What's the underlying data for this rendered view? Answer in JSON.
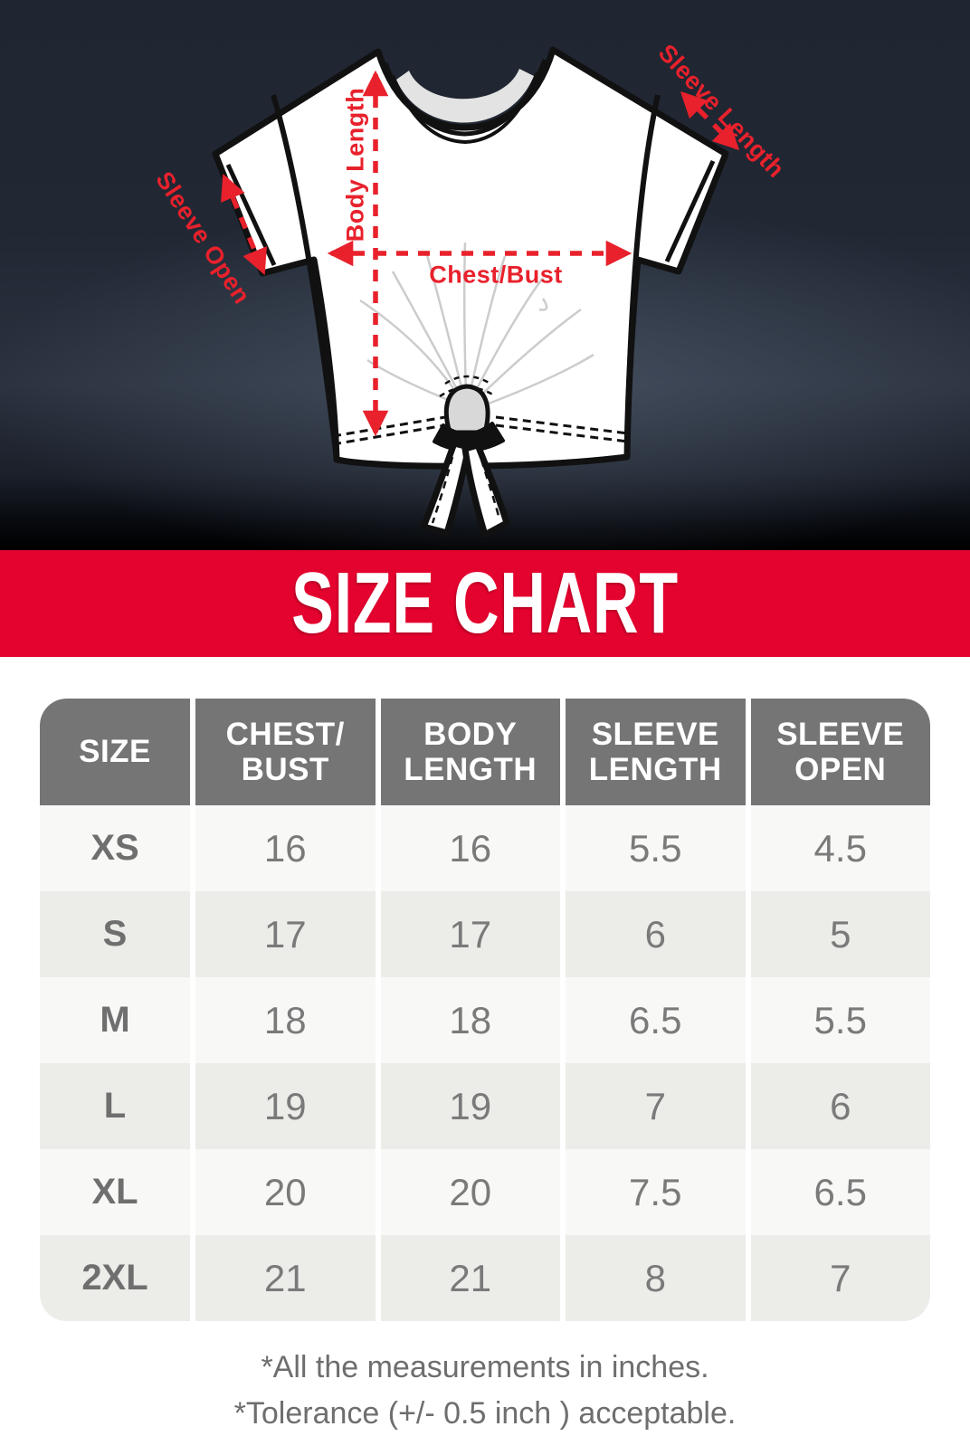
{
  "hero": {
    "labels": {
      "body_length": "Body Length",
      "chest_bust": "Chest/Bust",
      "sleeve_length": "Sleeve Length",
      "sleeve_open": "Sleeve Open"
    }
  },
  "banner": {
    "title": "SIZE CHART"
  },
  "table_ui": {
    "header_lines": [
      [
        "SIZE"
      ],
      [
        "CHEST/",
        "BUST"
      ],
      [
        "BODY",
        "LENGTH"
      ],
      [
        "SLEEVE",
        "LENGTH"
      ],
      [
        "SLEEVE",
        "OPEN"
      ]
    ]
  },
  "footnotes": {
    "line1": "*All the measurements in inches.",
    "line2": "*Tolerance (+/- 0.5 inch ) acceptable."
  },
  "colors": {
    "banner_red": "#E4022F",
    "annotation_red": "#E8212C",
    "header_gray": "#757575",
    "row_light": "#F8F8F6",
    "row_alt": "#ECECE9",
    "shirt_outline": "#111111"
  },
  "chart_data": {
    "type": "table",
    "title": "SIZE CHART",
    "columns": [
      "SIZE",
      "CHEST/BUST",
      "BODY LENGTH",
      "SLEEVE LENGTH",
      "SLEEVE OPEN"
    ],
    "rows": [
      [
        "XS",
        16,
        16,
        5.5,
        4.5
      ],
      [
        "S",
        17,
        17,
        6,
        5
      ],
      [
        "M",
        18,
        18,
        6.5,
        5.5
      ],
      [
        "L",
        19,
        19,
        7,
        6
      ],
      [
        "XL",
        20,
        20,
        7.5,
        6.5
      ],
      [
        "2XL",
        21,
        21,
        8,
        7
      ]
    ],
    "units": "inches",
    "notes": [
      "*All the measurements in inches.",
      "*Tolerance (+/- 0.5 inch ) acceptable."
    ]
  }
}
